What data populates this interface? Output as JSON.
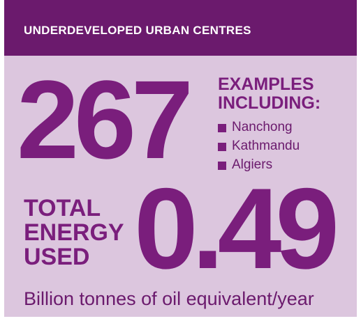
{
  "header": {
    "title": "UNDERDEVELOPED URBAN CENTRES"
  },
  "count": "267",
  "examples": {
    "heading_lines": [
      "EXAMPLES",
      "INCLUDING:"
    ],
    "items": [
      "Nanchong",
      "Kathmandu",
      "Algiers"
    ]
  },
  "energy": {
    "label_lines": [
      "TOTAL",
      "ENERGY",
      "USED"
    ],
    "value": "0.49",
    "unit": "Billion tonnes of oil equivalent/year"
  }
}
